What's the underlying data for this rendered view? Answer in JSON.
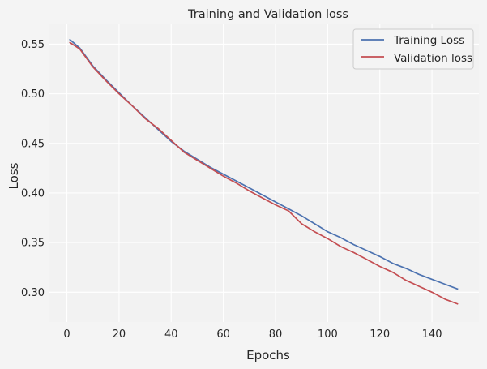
{
  "chart_data": {
    "type": "line",
    "title": "Training and Validation loss",
    "xlabel": "Epochs",
    "ylabel": "Loss",
    "xlim": [
      -7,
      158
    ],
    "ylim": [
      0.27,
      0.57
    ],
    "x_ticks": [
      0,
      20,
      40,
      60,
      80,
      100,
      120,
      140
    ],
    "y_ticks": [
      0.3,
      0.35,
      0.4,
      0.45,
      0.5,
      0.55
    ],
    "y_tick_labels": [
      "0.30",
      "0.35",
      "0.40",
      "0.45",
      "0.50",
      "0.55"
    ],
    "grid": true,
    "legend_position": "top-right",
    "series": [
      {
        "name": "Training Loss",
        "color": "#4c72b0",
        "points": [
          [
            1,
            0.555
          ],
          [
            5,
            0.546
          ],
          [
            10,
            0.528
          ],
          [
            15,
            0.514
          ],
          [
            20,
            0.501
          ],
          [
            25,
            0.488
          ],
          [
            30,
            0.476
          ],
          [
            35,
            0.464
          ],
          [
            40,
            0.452
          ],
          [
            45,
            0.442
          ],
          [
            50,
            0.434
          ],
          [
            55,
            0.426
          ],
          [
            60,
            0.419
          ],
          [
            65,
            0.412
          ],
          [
            70,
            0.405
          ],
          [
            75,
            0.398
          ],
          [
            80,
            0.391
          ],
          [
            85,
            0.384
          ],
          [
            90,
            0.377
          ],
          [
            95,
            0.369
          ],
          [
            100,
            0.361
          ],
          [
            105,
            0.355
          ],
          [
            110,
            0.348
          ],
          [
            115,
            0.342
          ],
          [
            120,
            0.336
          ],
          [
            125,
            0.329
          ],
          [
            130,
            0.324
          ],
          [
            135,
            0.318
          ],
          [
            140,
            0.313
          ],
          [
            145,
            0.308
          ],
          [
            150,
            0.303
          ]
        ]
      },
      {
        "name": "Validation loss",
        "color": "#c44e52",
        "points": [
          [
            1,
            0.552
          ],
          [
            5,
            0.545
          ],
          [
            10,
            0.527
          ],
          [
            15,
            0.513
          ],
          [
            20,
            0.5
          ],
          [
            25,
            0.488
          ],
          [
            30,
            0.475
          ],
          [
            35,
            0.465
          ],
          [
            40,
            0.453
          ],
          [
            45,
            0.441
          ],
          [
            50,
            0.433
          ],
          [
            55,
            0.425
          ],
          [
            60,
            0.417
          ],
          [
            65,
            0.41
          ],
          [
            70,
            0.402
          ],
          [
            75,
            0.395
          ],
          [
            80,
            0.388
          ],
          [
            85,
            0.382
          ],
          [
            90,
            0.369
          ],
          [
            95,
            0.361
          ],
          [
            100,
            0.354
          ],
          [
            105,
            0.346
          ],
          [
            110,
            0.34
          ],
          [
            115,
            0.333
          ],
          [
            120,
            0.326
          ],
          [
            125,
            0.32
          ],
          [
            130,
            0.312
          ],
          [
            135,
            0.306
          ],
          [
            140,
            0.3
          ],
          [
            145,
            0.293
          ],
          [
            150,
            0.288
          ]
        ]
      }
    ]
  }
}
